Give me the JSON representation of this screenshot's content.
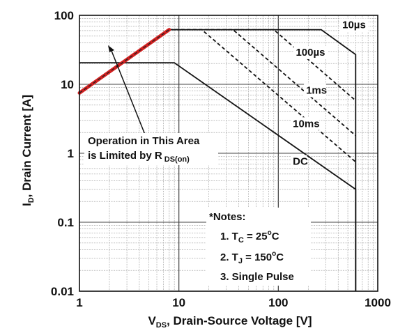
{
  "chart_data": {
    "type": "line",
    "x_scale": "log",
    "y_scale": "log",
    "xlim": [
      1,
      1000
    ],
    "ylim": [
      0.01,
      100
    ],
    "grid": true,
    "xlabel": {
      "main": "V",
      "sub": "DS",
      "rest": ", Drain-Source Voltage [V]"
    },
    "ylabel": {
      "main": "I",
      "sub": "D",
      "rest": ", Drain Current [A]"
    },
    "x_ticks": [
      {
        "value": 1,
        "label": "1"
      },
      {
        "value": 10,
        "label": "10"
      },
      {
        "value": 100,
        "label": "100"
      },
      {
        "value": 1000,
        "label": "1000"
      }
    ],
    "y_ticks": [
      {
        "value": 100,
        "label": "100"
      },
      {
        "value": 10,
        "label": "10"
      },
      {
        "value": 1,
        "label": "1"
      },
      {
        "value": 0.1,
        "label": "0.1"
      },
      {
        "value": 0.01,
        "label": "0.01"
      }
    ],
    "series": [
      {
        "name": "10µs",
        "style": "solid",
        "points": [
          [
            8,
            62
          ],
          [
            270,
            62
          ],
          [
            600,
            27
          ],
          [
            600,
            0.01
          ]
        ]
      },
      {
        "name": "100µs",
        "style": "dashed",
        "points": [
          [
            8,
            62
          ],
          [
            90,
            62
          ],
          [
            600,
            5.8
          ]
        ]
      },
      {
        "name": "1ms",
        "style": "dashed",
        "points": [
          [
            8,
            62
          ],
          [
            35,
            62
          ],
          [
            600,
            1.8
          ]
        ]
      },
      {
        "name": "10ms",
        "style": "dashed",
        "points": [
          [
            8,
            62
          ],
          [
            17,
            62
          ],
          [
            600,
            0.75
          ]
        ]
      },
      {
        "name": "DC",
        "style": "solid",
        "points": [
          [
            1,
            20.5
          ],
          [
            9,
            20.5
          ],
          [
            600,
            0.3
          ],
          [
            600,
            0.01
          ]
        ]
      },
      {
        "name": "RDS(on) limit",
        "style": "highlight",
        "points": [
          [
            1,
            7.5
          ],
          [
            8,
            62
          ]
        ]
      }
    ],
    "curve_labels": [
      {
        "text": "10",
        "unit": "µs",
        "x": 440,
        "y": 65
      },
      {
        "text": "100",
        "unit": "µs",
        "x": 150,
        "y": 26
      },
      {
        "text": "1ms",
        "unit": "",
        "x": 190,
        "y": 7.3
      },
      {
        "text": "10ms",
        "unit": "",
        "x": 140,
        "y": 2.4
      },
      {
        "text": "DC",
        "unit": "",
        "x": 140,
        "y": 0.68
      }
    ],
    "annotations": {
      "region_line1": "Operation in This Area",
      "region_line2_main": "is Limited by R",
      "region_line2_sub": " DS(on)",
      "notes_title": "*Notes:",
      "note1": {
        "pre": "1. T",
        "sub": "C",
        "mid": " = 25",
        "sup": "o",
        "post": "C"
      },
      "note2": {
        "pre": "2. T",
        "sub": "J",
        "mid": " = 150",
        "sup": "o",
        "post": "C"
      },
      "note3": "3. Single Pulse"
    },
    "colors": {
      "curve": "#111111",
      "highlight": "#d42020",
      "grid": "#999999"
    }
  }
}
